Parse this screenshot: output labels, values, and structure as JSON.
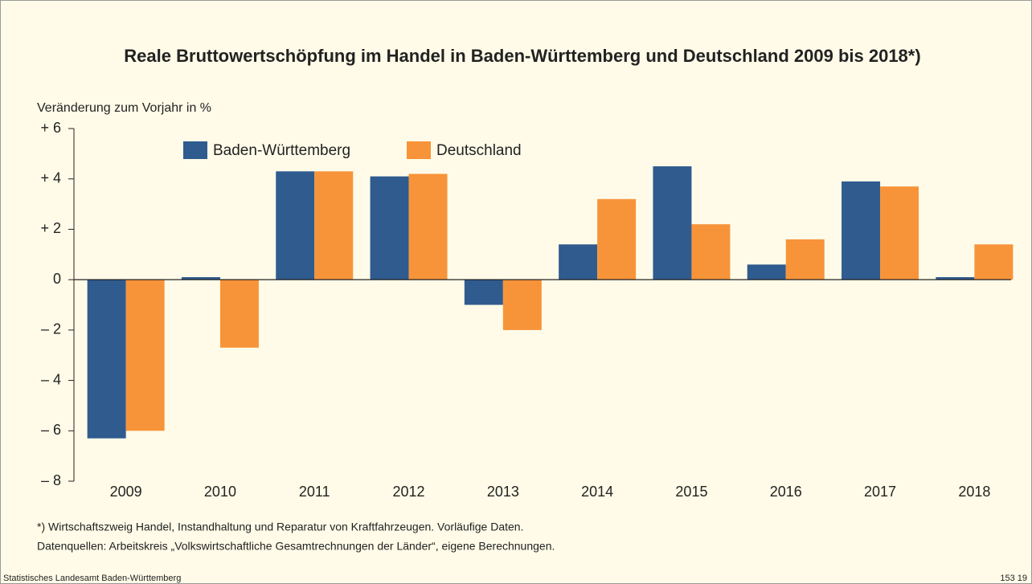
{
  "chart_data": {
    "type": "bar",
    "title": "Reale Bruttowertschöpfung im Handel in Baden-Württemberg und Deutschland 2009 bis 2018*)",
    "y_axis_label": "Veränderung zum Vorjahr in %",
    "categories": [
      "2009",
      "2010",
      "2011",
      "2012",
      "2013",
      "2014",
      "2015",
      "2016",
      "2017",
      "2018"
    ],
    "series": [
      {
        "name": "Baden-Württemberg",
        "color": "#2f5b8f",
        "values": [
          -6.3,
          0.1,
          4.3,
          4.1,
          -1.0,
          1.4,
          4.5,
          0.6,
          3.9,
          0.1
        ]
      },
      {
        "name": "Deutschland",
        "color": "#f7943a",
        "values": [
          -6.0,
          -2.7,
          4.3,
          4.2,
          -2.0,
          3.2,
          2.2,
          1.6,
          3.7,
          1.4
        ]
      }
    ],
    "ylim": [
      -8,
      6
    ],
    "yticks": [
      {
        "value": 6,
        "label": "+ 6"
      },
      {
        "value": 4,
        "label": "+ 4"
      },
      {
        "value": 2,
        "label": "+ 2"
      },
      0,
      {
        "value": -2,
        "label": "– 2"
      },
      {
        "value": -4,
        "label": "– 4"
      },
      {
        "value": -6,
        "label": "– 6"
      },
      {
        "value": -8,
        "label": "– 8"
      }
    ],
    "footnote": "*) Wirtschaftszweig Handel, Instandhaltung und Reparatur von Kraftfahrzeugen. Vorläufige Daten.",
    "source": "Datenquellen: Arbeitskreis „Volkswirtschaftliche Gesamtrechnungen der Länder“, eigene Berechnungen.",
    "publisher": "Statistisches Landesamt Baden-Württemberg",
    "chart_id": "153 19"
  }
}
